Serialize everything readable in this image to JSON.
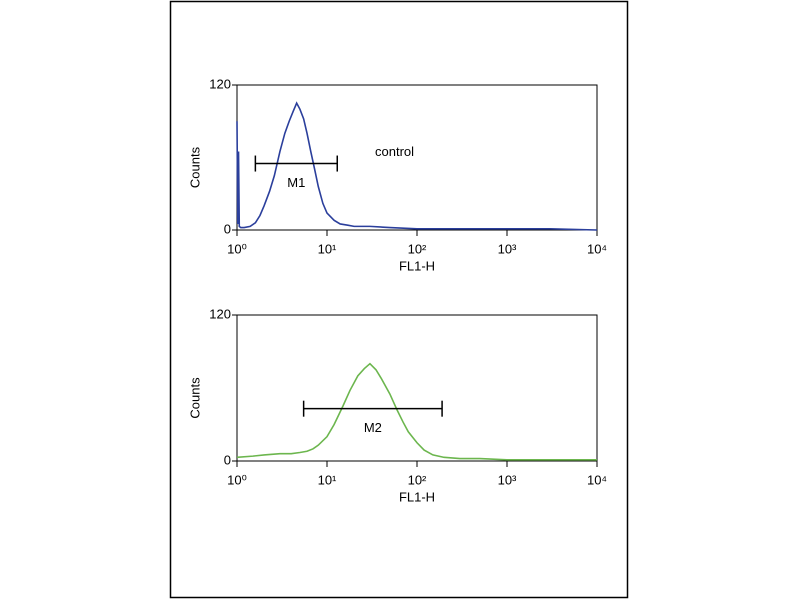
{
  "chart_data": [
    {
      "type": "line",
      "color": "#2b3f9c",
      "xlabel": "FL1-H",
      "ylabel": "Counts",
      "annotation": "control",
      "log_x": true,
      "xlim": [
        1,
        10000
      ],
      "ylim": [
        0,
        120
      ],
      "xticks": [
        {
          "value": 1,
          "label": "10⁰"
        },
        {
          "value": 10,
          "label": "10¹"
        },
        {
          "value": 100,
          "label": "10²"
        },
        {
          "value": 1000,
          "label": "10³"
        },
        {
          "value": 10000,
          "label": "10⁴"
        }
      ],
      "yticks": [
        0,
        120
      ],
      "marker": {
        "label": "M1",
        "x": [
          1.6,
          13
        ],
        "y": 55
      },
      "x": [
        1,
        1.02,
        1.04,
        1.06,
        1.1,
        1.2,
        1.4,
        1.6,
        1.8,
        2,
        2.3,
        2.6,
        3,
        3.4,
        3.8,
        4.2,
        4.6,
        5,
        5.5,
        6,
        6.6,
        7.3,
        8,
        9,
        10,
        12,
        14,
        17,
        20,
        30,
        50,
        100,
        300,
        1000,
        3000,
        10000
      ],
      "values": [
        90,
        5,
        65,
        3,
        2,
        2,
        3,
        6,
        12,
        20,
        32,
        45,
        65,
        80,
        90,
        98,
        105,
        100,
        92,
        80,
        65,
        50,
        36,
        22,
        14,
        8,
        5,
        4,
        3,
        3,
        2,
        1,
        1,
        1,
        1,
        0
      ]
    },
    {
      "type": "line",
      "color": "#6cb64e",
      "xlabel": "FL1-H",
      "ylabel": "Counts",
      "log_x": true,
      "xlim": [
        1,
        10000
      ],
      "ylim": [
        0,
        120
      ],
      "xticks": [
        {
          "value": 1,
          "label": "10⁰"
        },
        {
          "value": 10,
          "label": "10¹"
        },
        {
          "value": 100,
          "label": "10²"
        },
        {
          "value": 1000,
          "label": "10³"
        },
        {
          "value": 10000,
          "label": "10⁴"
        }
      ],
      "yticks": [
        0,
        120
      ],
      "marker": {
        "label": "M2",
        "x": [
          5.5,
          190
        ],
        "y": 43
      },
      "x": [
        1,
        1.5,
        2,
        3,
        4,
        5,
        6,
        7,
        8,
        10,
        12,
        15,
        18,
        22,
        26,
        30,
        35,
        40,
        50,
        60,
        70,
        80,
        100,
        120,
        150,
        200,
        300,
        500,
        1000,
        3000,
        10000
      ],
      "values": [
        3,
        4,
        5,
        6,
        6,
        7,
        8,
        10,
        13,
        20,
        30,
        45,
        58,
        70,
        76,
        80,
        75,
        68,
        55,
        42,
        32,
        24,
        15,
        9,
        5,
        3,
        2,
        2,
        1,
        1,
        1
      ]
    }
  ]
}
